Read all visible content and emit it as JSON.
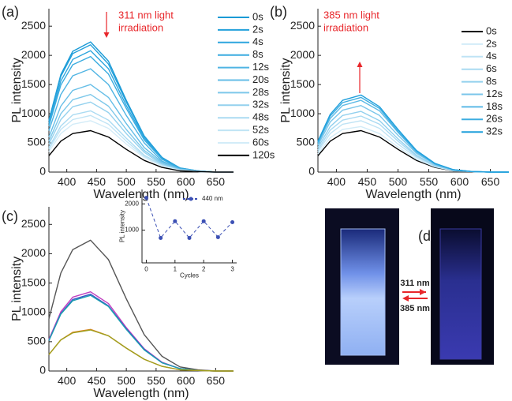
{
  "chart_data": [
    {
      "type": "line",
      "panel_label": "(a)",
      "xlabel": "Wavelength (nm)",
      "ylabel": "PL intensity",
      "annotation": [
        "311 nm light",
        "irradiation"
      ],
      "annotation_color": "#e8262a",
      "xlim": [
        370,
        680
      ],
      "xticks": [
        400,
        450,
        500,
        550,
        600,
        650
      ],
      "ylim": [
        0,
        2800
      ],
      "yticks": [
        0,
        500,
        1000,
        1500,
        2000,
        2500
      ],
      "legend": "top-right",
      "x": [
        370,
        390,
        410,
        440,
        470,
        500,
        530,
        560,
        590,
        620,
        650,
        680
      ],
      "series": [
        {
          "name": "0s",
          "color": "#1a9ad6",
          "values": [
            890,
            1670,
            2070,
            2230,
            1900,
            1230,
            620,
            250,
            70,
            20,
            0,
            0
          ]
        },
        {
          "name": "2s",
          "color": "#23a0db",
          "values": [
            870,
            1640,
            2030,
            2180,
            1850,
            1200,
            610,
            240,
            70,
            20,
            0,
            0
          ]
        },
        {
          "name": "4s",
          "color": "#2ea6de",
          "values": [
            830,
            1560,
            1930,
            2080,
            1770,
            1140,
            580,
            230,
            60,
            20,
            0,
            0
          ]
        },
        {
          "name": "8s",
          "color": "#3aace0",
          "values": [
            790,
            1490,
            1840,
            1980,
            1680,
            1090,
            550,
            220,
            60,
            20,
            0,
            0
          ]
        },
        {
          "name": "12s",
          "color": "#4fb4e3",
          "values": [
            710,
            1330,
            1650,
            1770,
            1500,
            970,
            500,
            190,
            50,
            20,
            0,
            0
          ]
        },
        {
          "name": "20s",
          "color": "#66bee7",
          "values": [
            600,
            1130,
            1400,
            1500,
            1280,
            830,
            420,
            170,
            50,
            20,
            0,
            0
          ]
        },
        {
          "name": "28s",
          "color": "#7dc8ea",
          "values": [
            530,
            1000,
            1240,
            1330,
            1130,
            730,
            370,
            150,
            40,
            10,
            0,
            0
          ]
        },
        {
          "name": "32s",
          "color": "#94d1ee",
          "values": [
            480,
            900,
            1120,
            1200,
            1020,
            660,
            340,
            130,
            40,
            10,
            0,
            0
          ]
        },
        {
          "name": "48s",
          "color": "#abdbf2",
          "values": [
            420,
            790,
            980,
            1050,
            890,
            580,
            290,
            120,
            30,
            10,
            0,
            0
          ]
        },
        {
          "name": "52s",
          "color": "#c0e4f5",
          "values": [
            390,
            730,
            900,
            970,
            820,
            530,
            270,
            110,
            30,
            10,
            0,
            0
          ]
        },
        {
          "name": "60s",
          "color": "#d3ecf8",
          "values": [
            350,
            660,
            820,
            880,
            750,
            480,
            250,
            100,
            30,
            10,
            0,
            0
          ]
        },
        {
          "name": "120s",
          "color": "#000000",
          "values": [
            280,
            530,
            660,
            710,
            600,
            390,
            200,
            80,
            20,
            10,
            0,
            0
          ]
        }
      ]
    },
    {
      "type": "line",
      "panel_label": "(b)",
      "xlabel": "Wavelength (nm)",
      "ylabel": "PL intensity",
      "annotation": [
        "385 nm light",
        "irradiation"
      ],
      "annotation_color": "#e8262a",
      "xlim": [
        370,
        680
      ],
      "xticks": [
        400,
        450,
        500,
        550,
        600,
        650
      ],
      "ylim": [
        0,
        2800
      ],
      "yticks": [
        0,
        500,
        1000,
        1500,
        2000,
        2500
      ],
      "legend": "top-right",
      "x": [
        370,
        390,
        410,
        440,
        470,
        500,
        530,
        560,
        590,
        620,
        650,
        680
      ],
      "series": [
        {
          "name": "0s",
          "color": "#000000",
          "values": [
            280,
            530,
            660,
            710,
            600,
            390,
            200,
            80,
            20,
            10,
            0,
            0
          ]
        },
        {
          "name": "2s",
          "color": "#d3ecf8",
          "values": [
            310,
            590,
            730,
            780,
            660,
            430,
            220,
            90,
            20,
            10,
            0,
            0
          ]
        },
        {
          "name": "4s",
          "color": "#bfe3f5",
          "values": [
            350,
            660,
            820,
            880,
            750,
            480,
            250,
            100,
            30,
            10,
            0,
            0
          ]
        },
        {
          "name": "6s",
          "color": "#a9daf2",
          "values": [
            380,
            720,
            890,
            960,
            820,
            530,
            270,
            110,
            30,
            10,
            0,
            0
          ]
        },
        {
          "name": "8s",
          "color": "#92d0ee",
          "values": [
            420,
            780,
            970,
            1040,
            880,
            570,
            290,
            110,
            30,
            10,
            0,
            0
          ]
        },
        {
          "name": "12s",
          "color": "#7bc6ea",
          "values": [
            460,
            860,
            1060,
            1140,
            970,
            630,
            320,
            130,
            30,
            10,
            0,
            0
          ]
        },
        {
          "name": "18s",
          "color": "#5dbae6",
          "values": [
            490,
            920,
            1140,
            1230,
            1050,
            680,
            340,
            140,
            40,
            10,
            0,
            0
          ]
        },
        {
          "name": "26s",
          "color": "#3eaee1",
          "values": [
            510,
            960,
            1190,
            1280,
            1090,
            700,
            360,
            140,
            40,
            10,
            0,
            0
          ]
        },
        {
          "name": "32s",
          "color": "#1f9fdc",
          "values": [
            530,
            990,
            1230,
            1320,
            1120,
            730,
            370,
            150,
            40,
            10,
            0,
            0
          ]
        }
      ]
    },
    {
      "type": "line",
      "panel_label": "(c)",
      "xlabel": "Wavelength (nm)",
      "ylabel": "PL intensity",
      "xlim": [
        370,
        680
      ],
      "xticks": [
        400,
        450,
        500,
        550,
        600,
        650
      ],
      "ylim": [
        0,
        2800
      ],
      "yticks": [
        0,
        500,
        1000,
        1500,
        2000,
        2500
      ],
      "x": [
        370,
        390,
        410,
        440,
        470,
        500,
        530,
        560,
        590,
        620,
        650,
        680
      ],
      "series": [
        {
          "color": "#555555",
          "values": [
            890,
            1670,
            2070,
            2230,
            1900,
            1230,
            620,
            250,
            70,
            20,
            0,
            0
          ]
        },
        {
          "color": "#c040c0",
          "values": [
            540,
            1010,
            1260,
            1350,
            1150,
            740,
            380,
            150,
            40,
            10,
            0,
            0
          ]
        },
        {
          "color": "#3c50c8",
          "values": [
            520,
            980,
            1220,
            1310,
            1110,
            720,
            370,
            140,
            40,
            10,
            0,
            0
          ]
        },
        {
          "color": "#1aa0b0",
          "values": [
            520,
            970,
            1200,
            1290,
            1100,
            710,
            360,
            140,
            40,
            10,
            0,
            0
          ]
        },
        {
          "color": "#e08020",
          "values": [
            280,
            530,
            660,
            710,
            600,
            390,
            200,
            80,
            20,
            10,
            0,
            0
          ]
        },
        {
          "color": "#a0a020",
          "values": [
            280,
            530,
            650,
            700,
            600,
            390,
            200,
            80,
            20,
            10,
            0,
            0
          ]
        }
      ]
    },
    {
      "type": "line",
      "inset": true,
      "xlabel": "Cycles",
      "ylabel": "PL intensity",
      "xlim": [
        -0.15,
        3.15
      ],
      "xticks": [
        0,
        1,
        2,
        3
      ],
      "ylim": [
        -250,
        2550
      ],
      "yticks": [
        1000,
        2000
      ],
      "legend": "top-right",
      "line_style": "dashed",
      "marker": "circle",
      "x": [
        0,
        0.5,
        1,
        1.5,
        2,
        2.5,
        3
      ],
      "series": [
        {
          "name": "440 nm",
          "color": "#3c50b4",
          "values": [
            2230,
            700,
            1340,
            700,
            1340,
            730,
            1300
          ]
        }
      ]
    }
  ],
  "photo": {
    "panel_label": "(d)",
    "forward_label": "311 nm",
    "reverse_label": "385 nm"
  }
}
